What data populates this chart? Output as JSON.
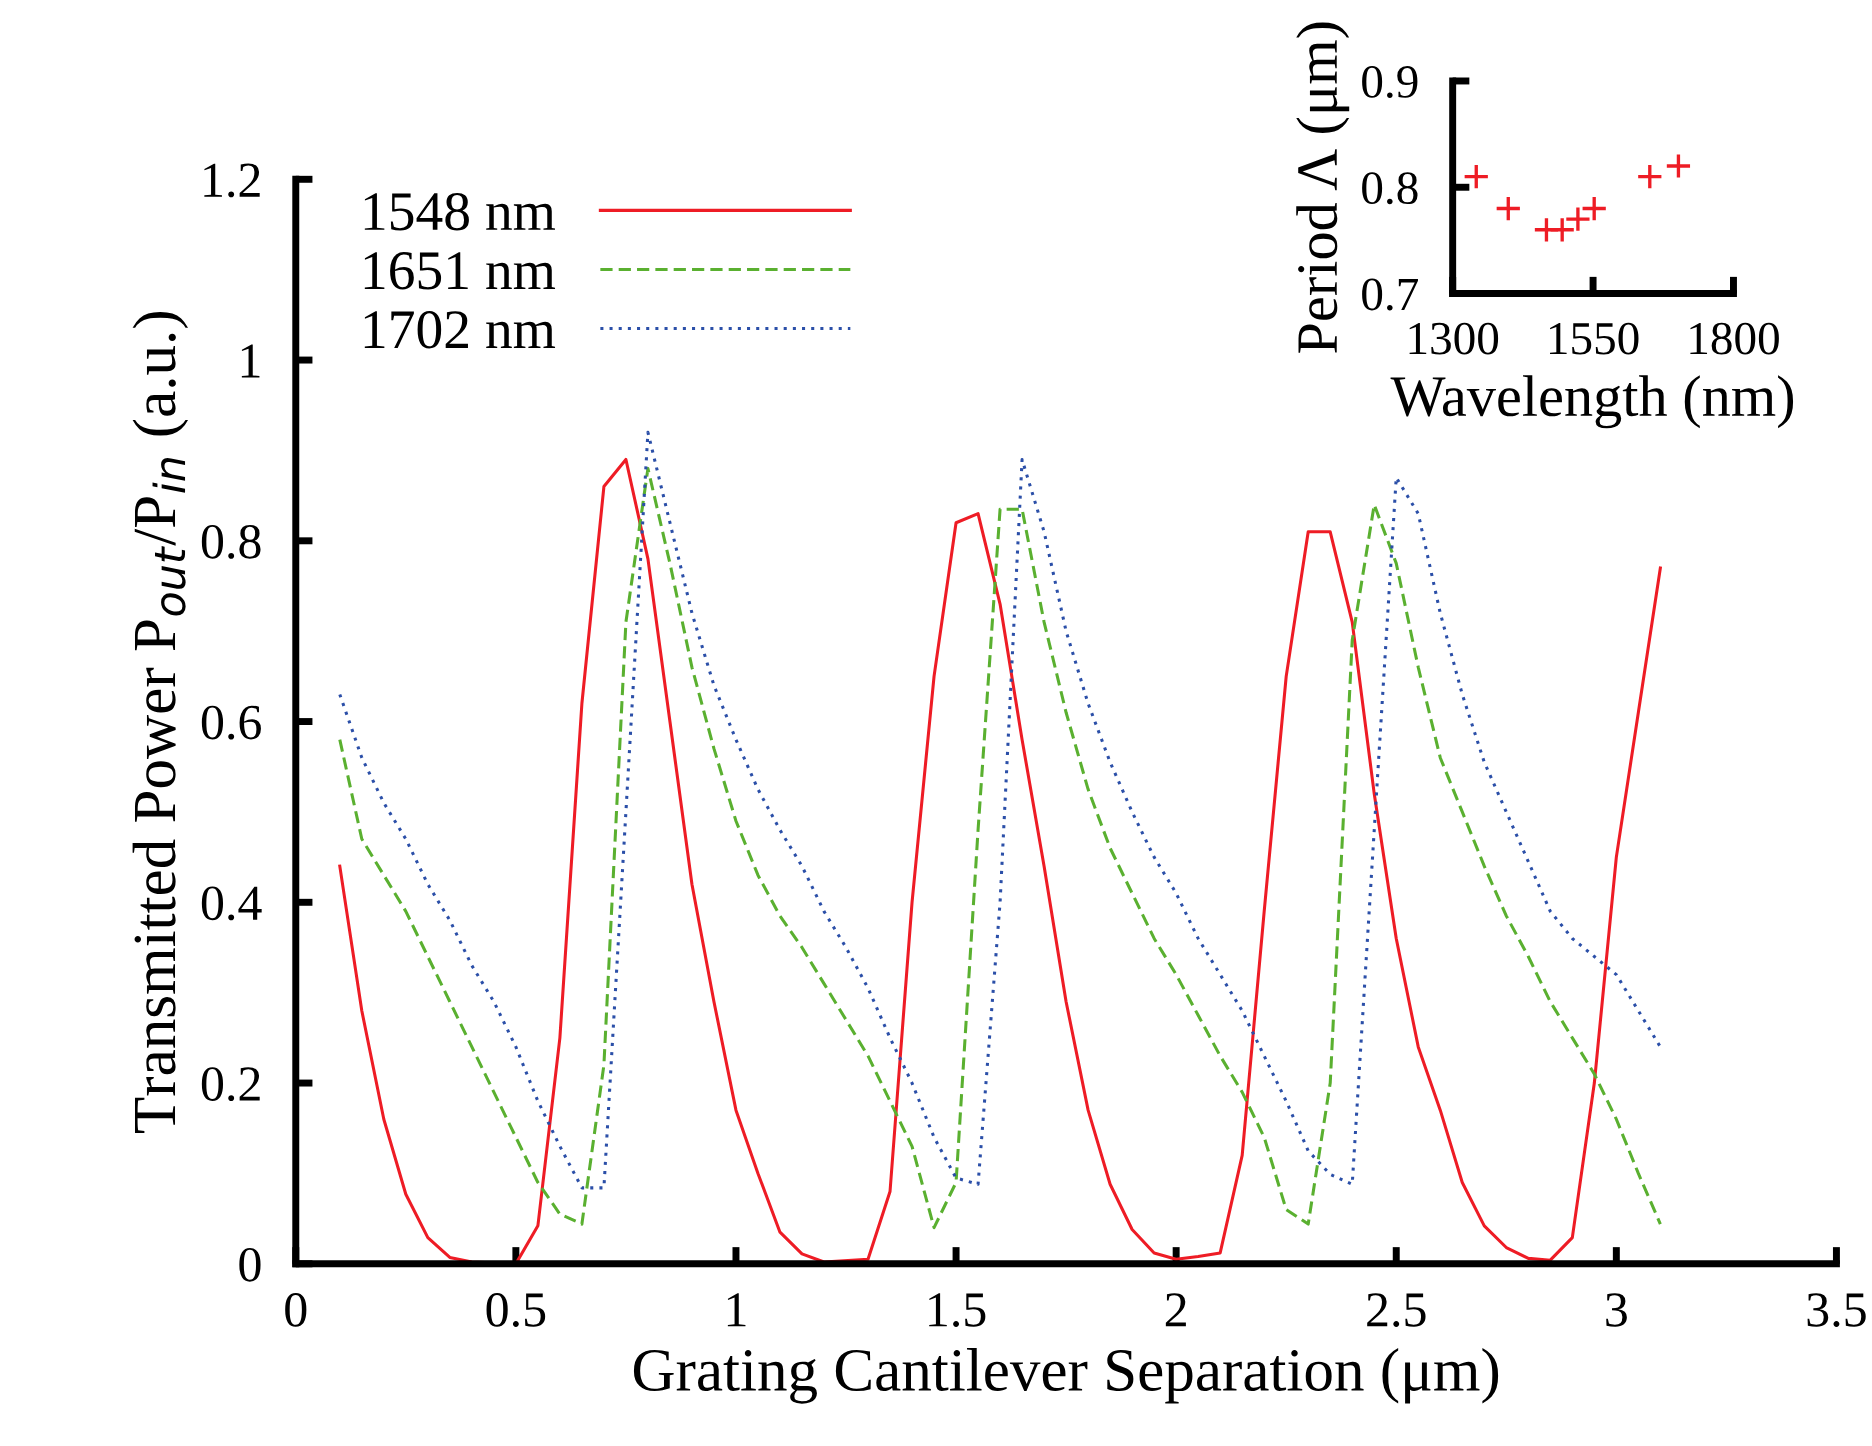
{
  "chart_data": [
    {
      "type": "line",
      "xlabel": "Grating Cantilever Separation (μm)",
      "ylabel": "Transmitted Power P$_{out}$/P$_{in}$ (a.u.)",
      "x": [
        0.1,
        0.15,
        0.2,
        0.25,
        0.3,
        0.35,
        0.4,
        0.45,
        0.5,
        0.55,
        0.6,
        0.65,
        0.7,
        0.75,
        0.8,
        0.85,
        0.9,
        0.95,
        1.0,
        1.05,
        1.1,
        1.15,
        1.2,
        1.25,
        1.3,
        1.35,
        1.4,
        1.45,
        1.5,
        1.55,
        1.6,
        1.65,
        1.7,
        1.75,
        1.8,
        1.85,
        1.9,
        1.95,
        2.0,
        2.05,
        2.1,
        2.15,
        2.2,
        2.25,
        2.3,
        2.35,
        2.4,
        2.45,
        2.5,
        2.55,
        2.6,
        2.65,
        2.7,
        2.75,
        2.8,
        2.85,
        2.9,
        2.95,
        3.0,
        3.05,
        3.1
      ],
      "series": [
        {
          "name": "1548 nm",
          "color": "#ee1c25",
          "line_style": "solid",
          "x": [
            0.1,
            0.15,
            0.2,
            0.25,
            0.3,
            0.35,
            0.4,
            0.5,
            0.55,
            0.6,
            0.65,
            0.7,
            0.75,
            0.8,
            0.85,
            0.9,
            0.95,
            1.0,
            1.05,
            1.1,
            1.15,
            1.2,
            1.3,
            1.35,
            1.4,
            1.45,
            1.5,
            1.55,
            1.6,
            1.65,
            1.7,
            1.75,
            1.8,
            1.85,
            1.9,
            1.95,
            2.0,
            2.05,
            2.1,
            2.15,
            2.2,
            2.25,
            2.3,
            2.35,
            2.4,
            2.45,
            2.5,
            2.55,
            2.6,
            2.65,
            2.7,
            2.75,
            2.8,
            2.85,
            2.9,
            2.95,
            3.0,
            3.05,
            3.1
          ],
          "values": [
            0.44,
            0.28,
            0.16,
            0.077,
            0.029,
            0.007,
            0.002,
            0,
            0.042,
            0.25,
            0.62,
            0.86,
            0.89,
            0.78,
            0.6,
            0.42,
            0.29,
            0.17,
            0.1,
            0.035,
            0.011,
            0.002,
            0.005,
            0.08,
            0.4,
            0.65,
            0.82,
            0.83,
            0.73,
            0.58,
            0.44,
            0.29,
            0.17,
            0.088,
            0.038,
            0.012,
            0.005,
            0.008,
            0.012,
            0.12,
            0.39,
            0.65,
            0.81,
            0.81,
            0.71,
            0.52,
            0.36,
            0.24,
            0.17,
            0.09,
            0.042,
            0.018,
            0.006,
            0.004,
            0.029,
            0.2,
            0.45,
            0.61,
            0.77
          ]
        },
        {
          "name": "1651 nm",
          "color": "#5ab030",
          "line_style": "dashed",
          "values": [
            0.58,
            0.47,
            0.43,
            0.39,
            0.34,
            0.29,
            0.24,
            0.19,
            0.14,
            0.09,
            0.055,
            0.044,
            0.22,
            0.71,
            0.88,
            0.775,
            0.66,
            0.57,
            0.49,
            0.43,
            0.385,
            0.35,
            0.31,
            0.27,
            0.23,
            0.18,
            0.13,
            0.04,
            0.09,
            0.48,
            0.835,
            0.835,
            0.71,
            0.61,
            0.525,
            0.46,
            0.41,
            0.36,
            0.32,
            0.275,
            0.23,
            0.19,
            0.14,
            0.06,
            0.044,
            0.2,
            0.69,
            0.84,
            0.775,
            0.66,
            0.56,
            0.5,
            0.44,
            0.385,
            0.34,
            0.29,
            0.25,
            0.21,
            0.16,
            0.1,
            0.044
          ]
        },
        {
          "name": "1702 nm",
          "color": "#2b4fa8",
          "line_style": "dotted",
          "values": [
            0.63,
            0.56,
            0.51,
            0.47,
            0.42,
            0.38,
            0.33,
            0.29,
            0.24,
            0.18,
            0.13,
            0.084,
            0.084,
            0.5,
            0.92,
            0.82,
            0.72,
            0.64,
            0.58,
            0.525,
            0.48,
            0.44,
            0.39,
            0.35,
            0.305,
            0.25,
            0.2,
            0.14,
            0.095,
            0.088,
            0.4,
            0.89,
            0.81,
            0.7,
            0.62,
            0.555,
            0.5,
            0.45,
            0.41,
            0.36,
            0.32,
            0.28,
            0.23,
            0.18,
            0.125,
            0.099,
            0.088,
            0.48,
            0.87,
            0.83,
            0.72,
            0.63,
            0.555,
            0.5,
            0.445,
            0.39,
            0.36,
            0.34,
            0.32,
            0.28,
            0.24
          ]
        }
      ],
      "xlim": [
        0,
        3.5
      ],
      "xticks": [
        0,
        0.5,
        1,
        1.5,
        2,
        2.5,
        3,
        3.5
      ],
      "ylim": [
        0,
        1.2
      ],
      "yticks": [
        0,
        0.2,
        0.4,
        0.6,
        0.8,
        1,
        1.2
      ],
      "grid": false,
      "legend": "top left"
    },
    {
      "type": "scatter",
      "xlabel": "Wavelength (nm)",
      "ylabel": "Period Λ (μm)",
      "marker": "cross",
      "x": [
        1342,
        1399,
        1467,
        1495,
        1523,
        1552,
        1651,
        1702
      ],
      "series": [
        {
          "color": "#ee1c25",
          "values": [
            0.81,
            0.78,
            0.76,
            0.76,
            0.77,
            0.78,
            0.81,
            0.82
          ]
        }
      ],
      "xlim": [
        1300,
        1800
      ],
      "xticks": [
        1300,
        1550,
        1800
      ],
      "ylim": [
        0.7,
        0.9
      ],
      "yticks": [
        0.7,
        0.8,
        0.9
      ],
      "grid": false,
      "legend": false
    }
  ]
}
